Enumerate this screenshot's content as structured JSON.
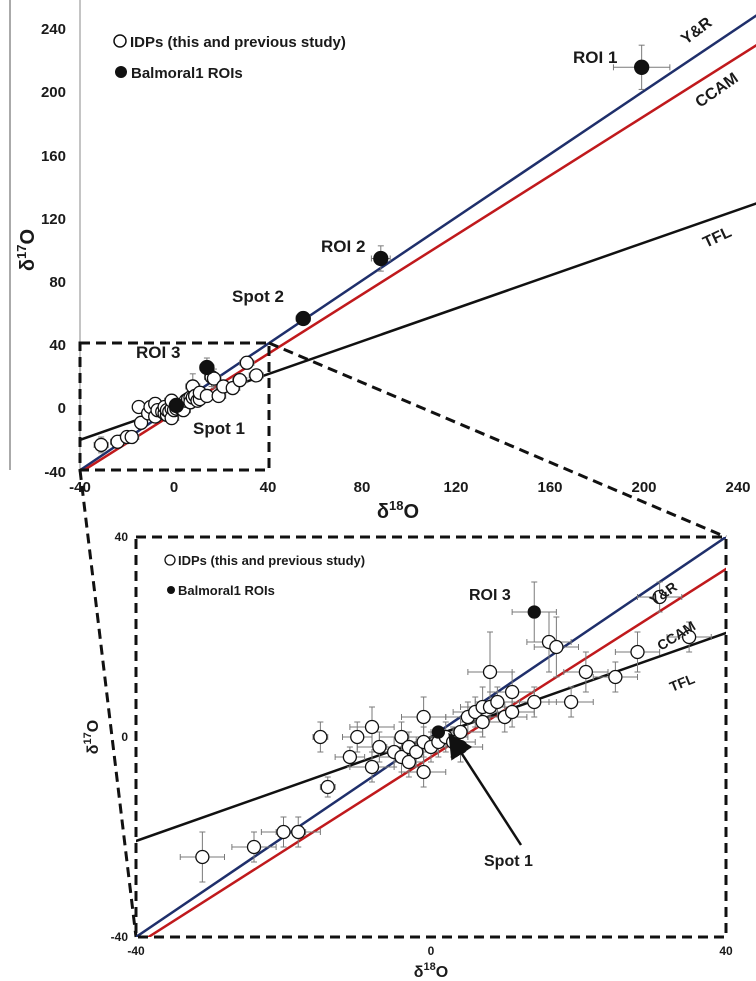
{
  "colors": {
    "yr": "#1f2f6b",
    "ccam": "#c0191c",
    "tfl": "#111111",
    "marker": "#111111",
    "errbar": "#7a7a7a"
  },
  "panels": [
    {
      "id": "top",
      "xlabel_base": "δ",
      "xlabel_sup": "18",
      "xlabel_tail": "O",
      "ylabel_base": "δ",
      "ylabel_sup": "17",
      "ylabel_tail": "O",
      "xticks": [
        "-40",
        "0",
        "40",
        "80",
        "120",
        "160",
        "200",
        "240"
      ],
      "yticks": [
        "-40",
        "0",
        "40",
        "80",
        "120",
        "160",
        "200",
        "240"
      ],
      "legend": {
        "idps": "IDPs (this and previous study)",
        "rois": "Balmoral1 ROIs"
      },
      "line_labels": {
        "yr": "Y&R",
        "ccam": "CCAM",
        "tfl": "TFL"
      },
      "annotations": {
        "roi1": "ROI 1",
        "roi2": "ROI 2",
        "spot2": "Spot 2",
        "roi3": "ROI 3",
        "spot1": "Spot 1"
      }
    },
    {
      "id": "bottom",
      "xlabel_base": "δ",
      "xlabel_sup": "18",
      "xlabel_tail": "O",
      "ylabel_base": "δ",
      "ylabel_sup": "17",
      "ylabel_tail": "O",
      "xticks": [
        "-40",
        "0",
        "40"
      ],
      "yticks": [
        "-40",
        "0",
        "40"
      ],
      "legend": {
        "idps": "IDPs (this and previous study)",
        "rois": "Balmoral1 ROIs"
      },
      "line_labels": {
        "yr": "Y&R",
        "ccam": "CCAM",
        "tfl": "TFL"
      },
      "annotations": {
        "roi3": "ROI 3",
        "spot1": "Spot 1"
      }
    }
  ],
  "chart_data": [
    {
      "type": "scatter",
      "xlabel": "δ18O",
      "ylabel": "δ17O",
      "xlim": [
        -40,
        250
      ],
      "ylim": [
        -40,
        250
      ],
      "grid": false,
      "legend_position": "top-left",
      "lines": [
        {
          "name": "Y&R",
          "slope": 1.0,
          "intercept": 0.0
        },
        {
          "name": "CCAM",
          "slope": 0.94,
          "intercept": -4.0
        },
        {
          "name": "TFL",
          "slope": 0.52,
          "intercept": 0.0
        }
      ],
      "series": [
        {
          "name": "IDPs (this and previous study)",
          "marker": "open-circle",
          "points": [
            {
              "x": -31,
              "y": -24,
              "ex": 3,
              "ey": 5
            },
            {
              "x": -24,
              "y": -22,
              "ex": 3,
              "ey": 3
            },
            {
              "x": -20,
              "y": -19,
              "ex": 3,
              "ey": 3
            },
            {
              "x": -18,
              "y": -19,
              "ex": 3,
              "ey": 3
            },
            {
              "x": -15,
              "y": 0,
              "ex": 1,
              "ey": 3
            },
            {
              "x": -14,
              "y": -10,
              "ex": 1,
              "ey": 2
            },
            {
              "x": -11,
              "y": -4,
              "ex": 2,
              "ey": 2
            },
            {
              "x": -10,
              "y": 0,
              "ex": 2,
              "ey": 3
            },
            {
              "x": -8,
              "y": -6,
              "ex": 3,
              "ey": 3
            },
            {
              "x": -8,
              "y": 2,
              "ex": 3,
              "ey": 4
            },
            {
              "x": -7,
              "y": -2,
              "ex": 3,
              "ey": 3
            },
            {
              "x": -5,
              "y": -3,
              "ex": 3,
              "ey": 3
            },
            {
              "x": -4,
              "y": -4,
              "ex": 3,
              "ey": 3
            },
            {
              "x": -4,
              "y": 0,
              "ex": 3,
              "ey": 3
            },
            {
              "x": -3,
              "y": -5,
              "ex": 2,
              "ey": 3
            },
            {
              "x": -3,
              "y": -2,
              "ex": 3,
              "ey": 3
            },
            {
              "x": -2,
              "y": -3,
              "ex": 3,
              "ey": 3
            },
            {
              "x": -1,
              "y": -1,
              "ex": 3,
              "ey": 3
            },
            {
              "x": -1,
              "y": 4,
              "ex": 3,
              "ey": 4
            },
            {
              "x": -1,
              "y": -7,
              "ex": 3,
              "ey": 3
            },
            {
              "x": 0,
              "y": -2,
              "ex": 3,
              "ey": 3
            },
            {
              "x": 1,
              "y": -1,
              "ex": 3,
              "ey": 3
            },
            {
              "x": 2,
              "y": 0,
              "ex": 3,
              "ey": 3
            },
            {
              "x": 3,
              "y": -1,
              "ex": 3,
              "ey": 3
            },
            {
              "x": 4,
              "y": 1,
              "ex": 3,
              "ey": 3
            },
            {
              "x": 4,
              "y": -2,
              "ex": 3,
              "ey": 3
            },
            {
              "x": 5,
              "y": 4,
              "ex": 3,
              "ey": 3
            },
            {
              "x": 6,
              "y": 5,
              "ex": 3,
              "ey": 3
            },
            {
              "x": 7,
              "y": 6,
              "ex": 3,
              "ey": 4
            },
            {
              "x": 7,
              "y": 3,
              "ex": 3,
              "ey": 3
            },
            {
              "x": 8,
              "y": 13,
              "ex": 3,
              "ey": 8
            },
            {
              "x": 8,
              "y": 6,
              "ex": 3,
              "ey": 3
            },
            {
              "x": 9,
              "y": 7,
              "ex": 3,
              "ey": 3
            },
            {
              "x": 10,
              "y": 4,
              "ex": 3,
              "ey": 3
            },
            {
              "x": 11,
              "y": 5,
              "ex": 3,
              "ey": 3
            },
            {
              "x": 11,
              "y": 9,
              "ex": 3,
              "ey": 4
            },
            {
              "x": 14,
              "y": 7,
              "ex": 3,
              "ey": 3
            },
            {
              "x": 16,
              "y": 19,
              "ex": 3,
              "ey": 6
            },
            {
              "x": 17,
              "y": 18,
              "ex": 3,
              "ey": 6
            },
            {
              "x": 19,
              "y": 7,
              "ex": 3,
              "ey": 3
            },
            {
              "x": 21,
              "y": 13,
              "ex": 3,
              "ey": 4
            },
            {
              "x": 25,
              "y": 12,
              "ex": 3,
              "ey": 3
            },
            {
              "x": 28,
              "y": 17,
              "ex": 3,
              "ey": 4
            },
            {
              "x": 31,
              "y": 28,
              "ex": 3,
              "ey": 3
            },
            {
              "x": 35,
              "y": 20,
              "ex": 3,
              "ey": 3
            }
          ]
        },
        {
          "name": "Balmoral1 ROIs",
          "marker": "filled-circle",
          "points": [
            {
              "x": 199,
              "y": 215,
              "ex": 12,
              "ey": 14
            },
            {
              "x": 88,
              "y": 94,
              "ex": 4,
              "ey": 8
            },
            {
              "x": 55,
              "y": 56,
              "ex": 3,
              "ey": 4
            },
            {
              "x": 14,
              "y": 25,
              "ex": 3,
              "ey": 6
            },
            {
              "x": 1,
              "y": 1,
              "ex": 1,
              "ey": 1
            }
          ]
        }
      ],
      "annotations": [
        "ROI 1",
        "ROI 2",
        "Spot 2",
        "ROI 3",
        "Spot 1"
      ]
    },
    {
      "type": "scatter",
      "xlabel": "δ18O",
      "ylabel": "δ17O",
      "xlim": [
        -40,
        40
      ],
      "ylim": [
        -40,
        40
      ],
      "grid": false,
      "legend_position": "top-left",
      "zoom_of": "dashed box x -40..40, y -40..40 in the top panel",
      "lines": [
        {
          "name": "Y&R",
          "slope": 1.0,
          "intercept": 0.0
        },
        {
          "name": "CCAM",
          "slope": 0.94,
          "intercept": -4.0
        },
        {
          "name": "TFL",
          "slope": 0.52,
          "intercept": 0.0
        }
      ],
      "series": [
        {
          "name": "IDPs (this and previous study)",
          "marker": "open-circle",
          "same_points_as": "top panel"
        },
        {
          "name": "Balmoral1 ROIs",
          "marker": "filled-circle",
          "points": [
            {
              "x": 14,
              "y": 25,
              "ex": 3,
              "ey": 6
            },
            {
              "x": 1,
              "y": 1,
              "ex": 1,
              "ey": 1
            }
          ]
        }
      ],
      "annotations": [
        "ROI 3",
        "Spot 1"
      ]
    }
  ]
}
